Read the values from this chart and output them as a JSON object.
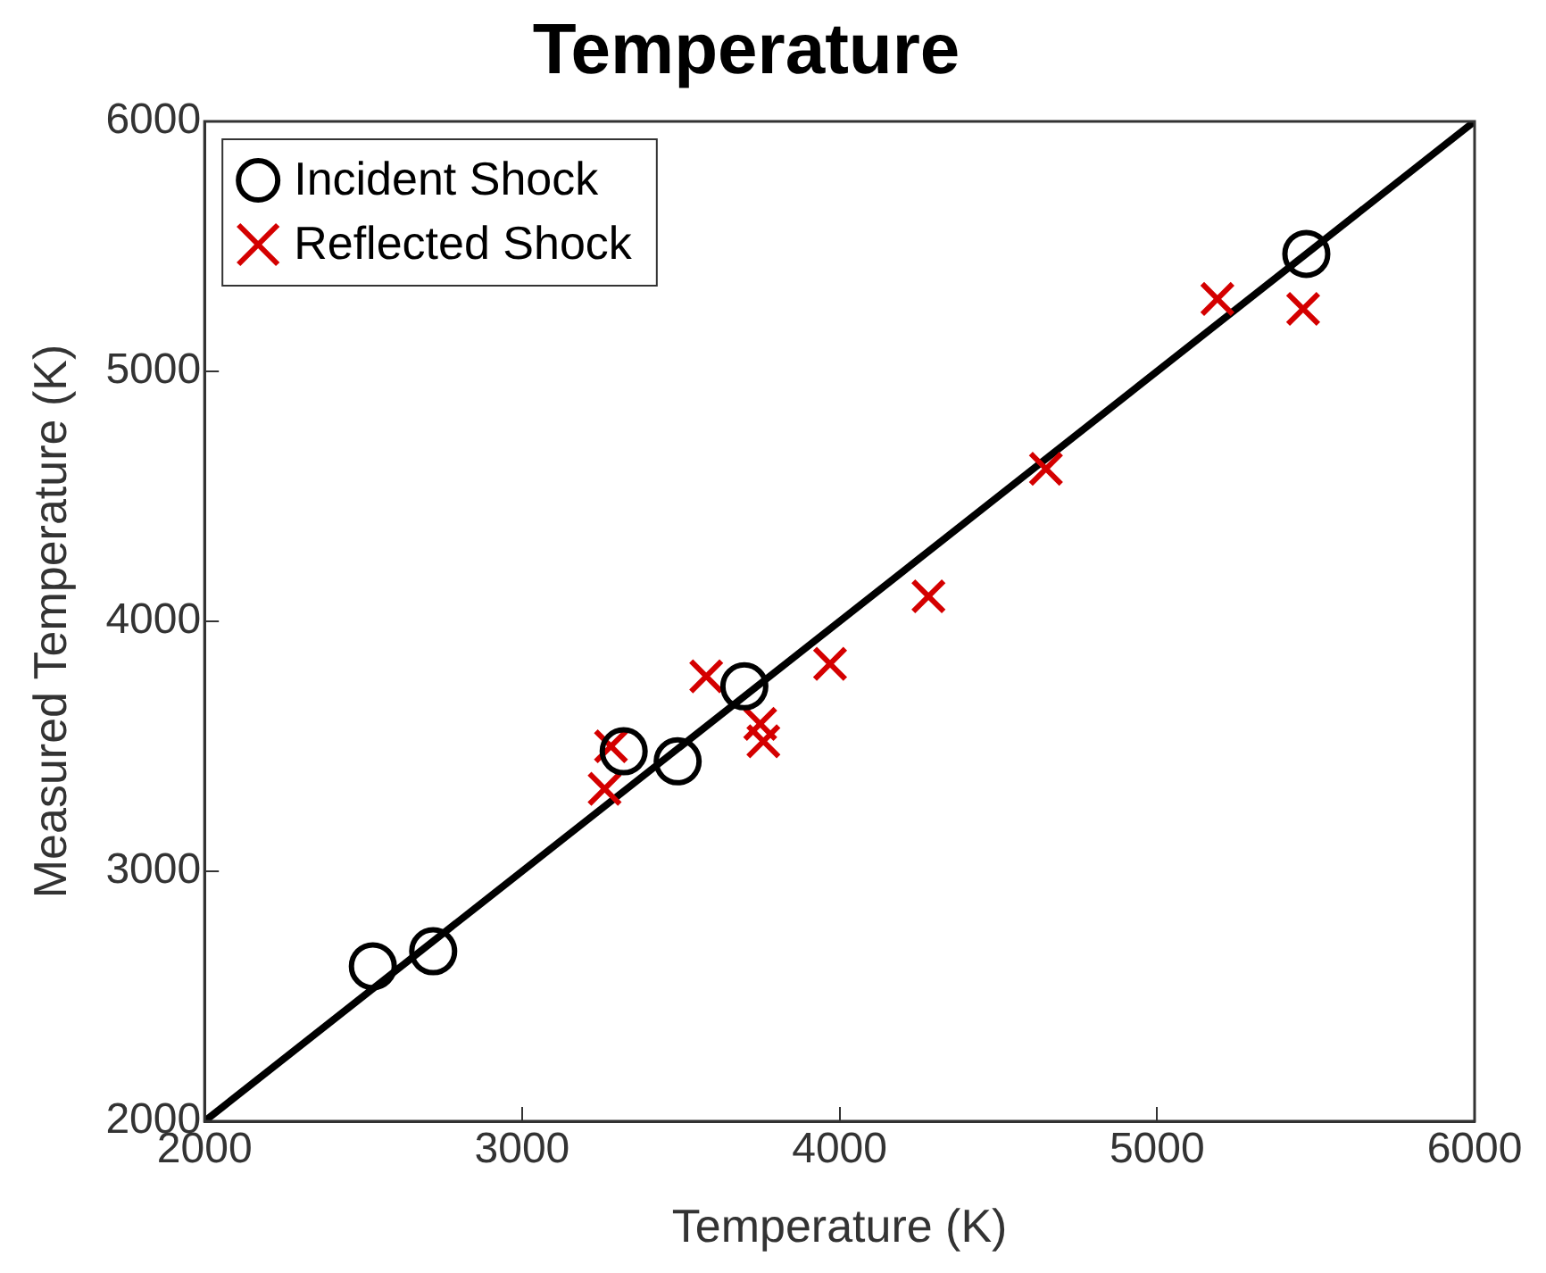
{
  "chart_data": {
    "type": "scatter",
    "title": "Temperature",
    "xlabel": "Temperature (K)",
    "ylabel": "Measured Temperature (K)",
    "xlim": [
      2000,
      6000
    ],
    "xticks": [
      2000,
      3000,
      4000,
      5000,
      6000
    ],
    "ylim": [
      2000,
      6000
    ],
    "yticks": [
      2000,
      3000,
      4000,
      5000,
      6000
    ],
    "grid": false,
    "legend": "top left",
    "series": [
      {
        "name": "Incident Shock",
        "color": "#000000",
        "marker": "circle",
        "x": [
          2530,
          2720,
          3320,
          3490,
          3700,
          5470
        ],
        "values": [
          2620,
          2680,
          3480,
          3440,
          3740,
          5470
        ]
      },
      {
        "name": "Reflected Shock",
        "color": "#d40000",
        "marker": "cross",
        "x": [
          3280,
          3260,
          3580,
          3750,
          3760,
          3970,
          4280,
          4650,
          5190,
          5460
        ],
        "values": [
          3500,
          3330,
          3780,
          3590,
          3520,
          3830,
          4100,
          4610,
          5290,
          5250
        ]
      },
      {
        "type": "line",
        "color": "#000000",
        "marker": "none",
        "x": [
          2000,
          6000
        ],
        "values": [
          2000,
          6000
        ]
      }
    ]
  }
}
